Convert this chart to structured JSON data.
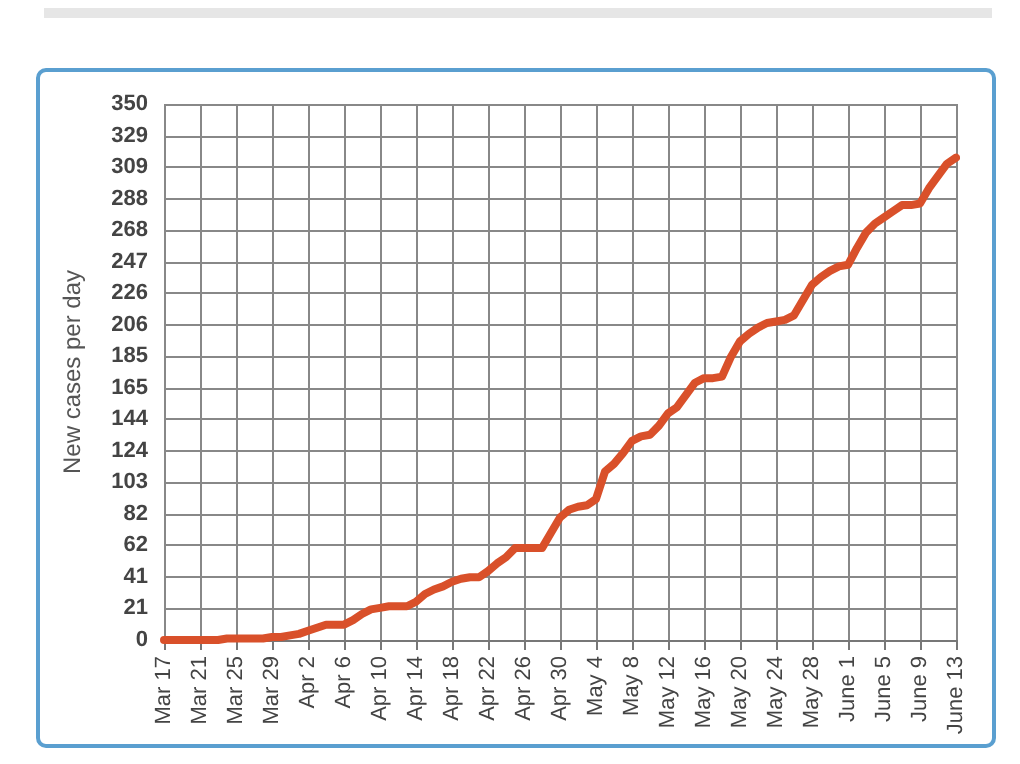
{
  "chart_data": {
    "type": "line",
    "ylabel": "New cases per day",
    "categories": [
      "Mar 17",
      null,
      null,
      null,
      "Mar 21",
      null,
      null,
      null,
      "Mar 25",
      null,
      null,
      null,
      "Mar 29",
      null,
      null,
      null,
      "Apr 2",
      null,
      null,
      null,
      "Apr 6",
      null,
      null,
      null,
      "Apr 10",
      null,
      null,
      null,
      "Apr 14",
      null,
      null,
      null,
      "Apr 18",
      null,
      null,
      null,
      "Apr 22",
      null,
      null,
      null,
      "Apr 26",
      null,
      null,
      null,
      "Apr 30",
      null,
      null,
      null,
      "May 4",
      null,
      null,
      null,
      "May 8",
      null,
      null,
      null,
      "May 12",
      null,
      null,
      null,
      "May 16",
      null,
      null,
      null,
      "May 20",
      null,
      null,
      null,
      "May 24",
      null,
      null,
      null,
      "May 28",
      null,
      null,
      null,
      "June 1",
      null,
      null,
      null,
      "June 5",
      null,
      null,
      null,
      "June 9",
      null,
      null,
      null,
      "June 13"
    ],
    "series": [
      {
        "color": "#d9502a",
        "values": [
          0,
          0,
          0,
          0,
          0,
          0,
          0,
          1,
          1,
          1,
          1,
          1,
          2,
          2,
          3,
          4,
          6,
          8,
          10,
          10,
          10,
          13,
          17,
          20,
          21,
          22,
          22,
          22,
          25,
          30,
          33,
          35,
          38,
          40,
          41,
          41,
          45,
          50,
          54,
          60,
          60,
          60,
          60,
          70,
          80,
          85,
          87,
          88,
          92,
          110,
          115,
          122,
          130,
          133,
          134,
          140,
          148,
          152,
          160,
          168,
          171,
          171,
          172,
          185,
          195,
          200,
          204,
          207,
          208,
          209,
          212,
          222,
          232,
          237,
          241,
          244,
          245,
          256,
          266,
          272,
          276,
          280,
          284,
          284,
          285,
          295,
          303,
          311,
          315
        ]
      }
    ],
    "ylim": [
      0,
      350
    ],
    "yticks": [
      0,
      {
        "value": 20.59,
        "label": "21"
      },
      {
        "value": 41.18,
        "label": "41"
      },
      {
        "value": 61.76,
        "label": "62"
      },
      {
        "value": 82.35,
        "label": "82"
      },
      {
        "value": 102.94,
        "label": "103"
      },
      {
        "value": 123.53,
        "label": "124"
      },
      {
        "value": 144.12,
        "label": "144"
      },
      {
        "value": 164.71,
        "label": "165"
      },
      {
        "value": 185.29,
        "label": "185"
      },
      {
        "value": 205.88,
        "label": "206"
      },
      {
        "value": 226.47,
        "label": "226"
      },
      {
        "value": 247.06,
        "label": "247"
      },
      {
        "value": 267.65,
        "label": "268"
      },
      {
        "value": 288.24,
        "label": "288"
      },
      {
        "value": 308.82,
        "label": "309"
      },
      {
        "value": 329.41,
        "label": "329"
      },
      350
    ],
    "grid": true,
    "marker": "none",
    "line_style": "solid"
  }
}
